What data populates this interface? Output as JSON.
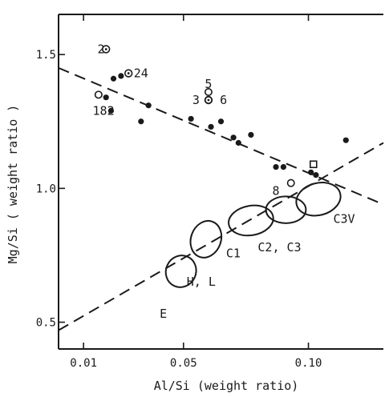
{
  "chart_data": {
    "type": "scatter",
    "xlabel": "Al/Si (weight ratio)",
    "ylabel": "Mg/Si ( weight ratio )",
    "xlim": [
      0.0,
      0.13
    ],
    "ylim": [
      0.4,
      1.65
    ],
    "x_ticks": [
      {
        "value": 0.01,
        "label": "0.01"
      },
      {
        "value": 0.05,
        "label": "0.05"
      },
      {
        "value": 0.1,
        "label": "0.10"
      }
    ],
    "y_ticks": [
      {
        "value": 0.5,
        "label": "0.5"
      },
      {
        "value": 1.0,
        "label": "1.0"
      },
      {
        "value": 1.5,
        "label": "1.5"
      }
    ],
    "series": [
      {
        "marker": "filled-circle",
        "points": [
          [
            0.019,
            1.34
          ],
          [
            0.021,
            1.29
          ],
          [
            0.022,
            1.41
          ],
          [
            0.025,
            1.42
          ],
          [
            0.033,
            1.25
          ],
          [
            0.036,
            1.31
          ],
          [
            0.053,
            1.26
          ],
          [
            0.061,
            1.23
          ],
          [
            0.065,
            1.25
          ],
          [
            0.07,
            1.19
          ],
          [
            0.072,
            1.17
          ],
          [
            0.077,
            1.2
          ],
          [
            0.087,
            1.08
          ],
          [
            0.09,
            1.08
          ],
          [
            0.101,
            1.06
          ],
          [
            0.103,
            1.05
          ],
          [
            0.115,
            1.18
          ]
        ]
      },
      {
        "marker": "open-circle",
        "points": [
          [
            0.016,
            1.35
          ],
          [
            0.06,
            1.33
          ],
          [
            0.06,
            1.36
          ],
          [
            0.093,
            1.02
          ]
        ]
      },
      {
        "marker": "dotted-open-circle",
        "points": [
          [
            0.019,
            1.52
          ],
          [
            0.028,
            1.43
          ],
          [
            0.06,
            1.33
          ]
        ]
      },
      {
        "marker": "open-square",
        "points": [
          [
            0.102,
            1.09
          ]
        ]
      }
    ],
    "point_labels": [
      {
        "text": "2",
        "x": 0.017,
        "y": 1.52
      },
      {
        "text": "24",
        "x": 0.033,
        "y": 1.43
      },
      {
        "text": "182",
        "x": 0.018,
        "y": 1.29
      },
      {
        "text": "5",
        "x": 0.06,
        "y": 1.39
      },
      {
        "text": "3",
        "x": 0.055,
        "y": 1.33
      },
      {
        "text": "6",
        "x": 0.066,
        "y": 1.33
      },
      {
        "text": "8",
        "x": 0.087,
        "y": 0.99
      }
    ],
    "trend_lines": [
      {
        "style": "dashed",
        "from": [
          0.0,
          1.45
        ],
        "to": [
          0.13,
          0.94
        ]
      },
      {
        "style": "dashed",
        "from": [
          0.0,
          0.47
        ],
        "to": [
          0.13,
          1.17
        ]
      }
    ],
    "regions": [
      {
        "label": "E",
        "center": [
          0.049,
          0.69
        ],
        "rx": 0.006,
        "ry": 0.06,
        "rotate": 25
      },
      {
        "label": "H, L",
        "center": [
          0.059,
          0.81
        ],
        "rx": 0.006,
        "ry": 0.07,
        "rotate": 20
      },
      {
        "label": "C1",
        "center": [
          0.077,
          0.88
        ],
        "rx": 0.009,
        "ry": 0.055,
        "rotate": -10
      },
      {
        "label": "C2, C3",
        "center": [
          0.091,
          0.92
        ],
        "rx": 0.008,
        "ry": 0.05,
        "rotate": 0
      },
      {
        "label": "C3V",
        "center": [
          0.104,
          0.96
        ],
        "rx": 0.009,
        "ry": 0.06,
        "rotate": -15
      }
    ]
  }
}
